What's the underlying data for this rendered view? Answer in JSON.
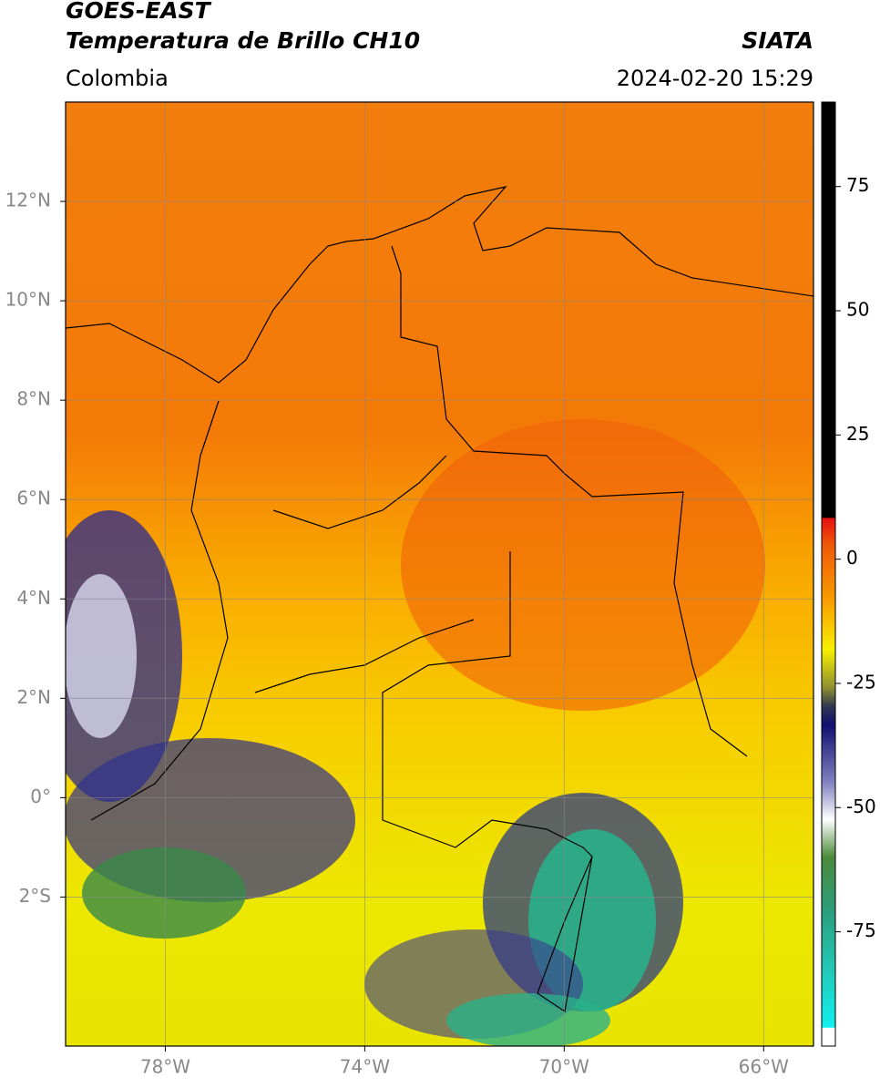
{
  "header": {
    "title": "GOES-EAST",
    "subtitle": "Temperatura de Brillo CH10",
    "source": "SIATA",
    "region": "Colombia",
    "datetime": "2024-02-20 15:29"
  },
  "map": {
    "xlim": [
      -80,
      -65
    ],
    "ylim": [
      -5,
      14
    ],
    "xticks": [
      {
        "value": -78,
        "label": "78°W"
      },
      {
        "value": -74,
        "label": "74°W"
      },
      {
        "value": -70,
        "label": "70°W"
      },
      {
        "value": -66,
        "label": "66°W"
      }
    ],
    "yticks": [
      {
        "value": 12,
        "label": "12°N"
      },
      {
        "value": 10,
        "label": "10°N"
      },
      {
        "value": 8,
        "label": "8°N"
      },
      {
        "value": 6,
        "label": "6°N"
      },
      {
        "value": 4,
        "label": "4°N"
      },
      {
        "value": 2,
        "label": "2°N"
      },
      {
        "value": 0,
        "label": "0°"
      },
      {
        "value": -2,
        "label": "2°S"
      }
    ],
    "grid": true
  },
  "colorbar": {
    "lim": [
      -98,
      92
    ],
    "ticks": [
      75,
      50,
      25,
      0,
      -25,
      -50,
      -75
    ]
  }
}
